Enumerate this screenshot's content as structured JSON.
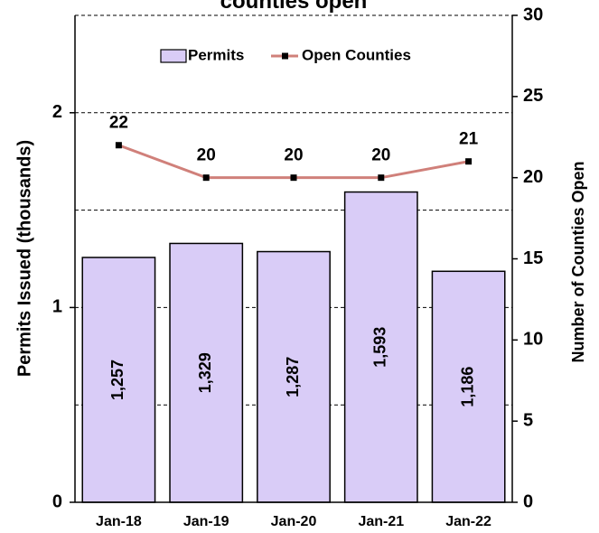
{
  "chart_data": {
    "type": "bar_line",
    "title": "counties open",
    "categories": [
      "Jan-18",
      "Jan-19",
      "Jan-20",
      "Jan-21",
      "Jan-22"
    ],
    "series": [
      {
        "name": "Permits",
        "type": "bar",
        "color": "#d9ccf7",
        "values": [
          1.257,
          1.329,
          1.287,
          1.593,
          1.186
        ],
        "value_labels": [
          "1,257",
          "1,329",
          "1,287",
          "1,593",
          "1,186"
        ]
      },
      {
        "name": "Open Counties",
        "type": "line",
        "axis": "y2",
        "color": "#d0807a",
        "values": [
          22,
          20,
          20,
          20,
          21
        ]
      }
    ],
    "ylabel": "Permits Issued (thousands)",
    "y2label": "Number of Counties Open",
    "ylim": [
      0,
      2.5
    ],
    "yticks": [
      0,
      1,
      2
    ],
    "ygridlines": [
      0.5,
      1,
      1.5,
      2,
      2.5
    ],
    "y2lim": [
      0,
      30
    ],
    "y2ticks": [
      0,
      5,
      10,
      15,
      20,
      25,
      30
    ],
    "legend": "top"
  }
}
